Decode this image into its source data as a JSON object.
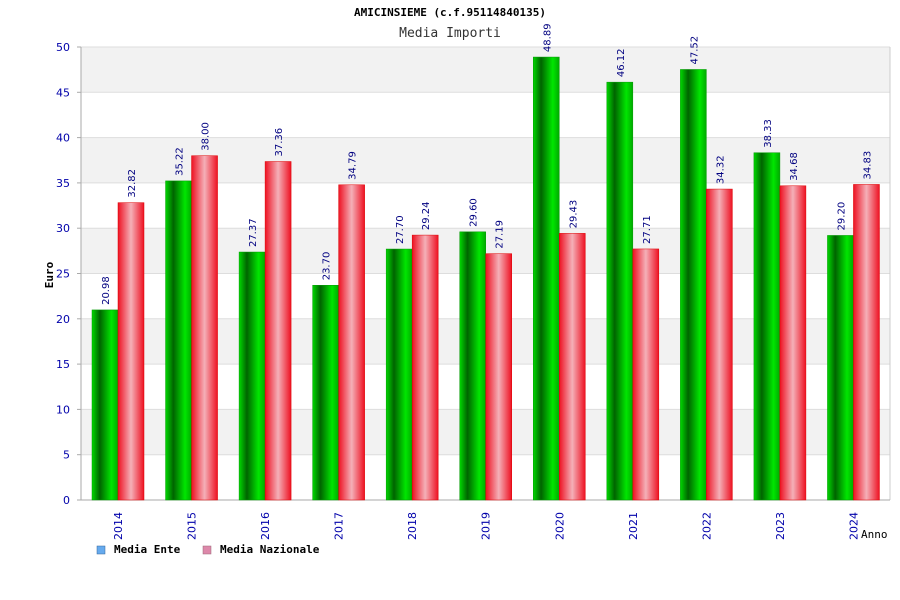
{
  "chart_data": {
    "type": "bar",
    "title": "AMICINSIEME (c.f.95114840135)",
    "subtitle": "Media Importi",
    "ylabel": "Euro",
    "xlabel": "Anno",
    "ylim": [
      0,
      50
    ],
    "yticks": [
      0,
      5,
      10,
      15,
      20,
      25,
      30,
      35,
      40,
      45,
      50
    ],
    "grid": true,
    "legend_position": "bottom-left",
    "categories": [
      "2014",
      "2015",
      "2016",
      "2017",
      "2018",
      "2019",
      "2020",
      "2021",
      "2022",
      "2023",
      "2024"
    ],
    "series": [
      {
        "name": "Media Ente",
        "color": "#00aa00",
        "legend_color": "#66aaee",
        "values": [
          20.98,
          35.22,
          27.37,
          23.7,
          27.7,
          29.6,
          48.89,
          46.12,
          47.52,
          38.33,
          29.2
        ],
        "labels": [
          "20.98",
          "35.22",
          "27.37",
          "23.70",
          "27.70",
          "29.60",
          "48.89",
          "46.12",
          "47.52",
          "38.33",
          "29.20"
        ]
      },
      {
        "name": "Media Nazionale",
        "color": "#ee2222",
        "legend_color": "#dd88aa",
        "values": [
          32.82,
          38.0,
          37.36,
          34.79,
          29.24,
          27.19,
          29.43,
          27.71,
          34.32,
          34.68,
          34.83
        ],
        "labels": [
          "32.82",
          "38.00",
          "37.36",
          "34.79",
          "29.24",
          "27.19",
          "29.43",
          "27.71",
          "34.32",
          "34.68",
          "34.83"
        ]
      }
    ]
  }
}
